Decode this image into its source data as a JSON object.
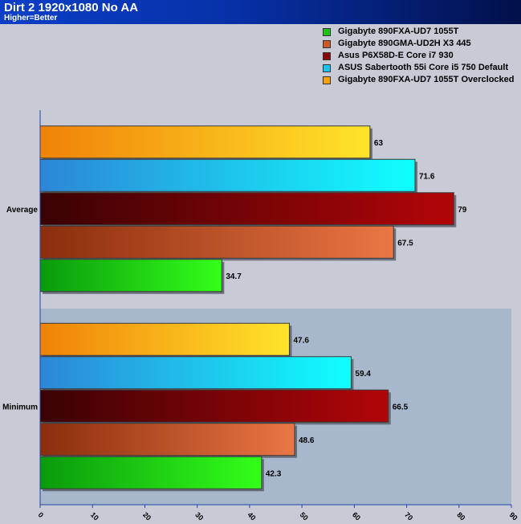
{
  "header": {
    "title": "Dirt 2 1920x1080 No AA",
    "subtitle": "Higher=Better"
  },
  "legend": [
    {
      "label": "Gigabyte 890FXA-UD7 1055T",
      "color": "#22c00e"
    },
    {
      "label": "Gigabyte 890GMA-UD2H X3 445",
      "color": "#c85a26"
    },
    {
      "label": "Asus P6X58D-E Core i7 930",
      "color": "#8a0508"
    },
    {
      "label": "ASUS Sabertooth 55i Core i5 750 Default",
      "color": "#18c4ee"
    },
    {
      "label": "Gigabyte 890FXA-UD7 1055T Overclocked",
      "color": "#f5a20c"
    }
  ],
  "chart_data": {
    "type": "bar",
    "orientation": "horizontal",
    "categories": [
      "Average",
      "Minimum"
    ],
    "series": [
      {
        "name": "Gigabyte 890FXA-UD7 1055T",
        "values": [
          34.7,
          42.3
        ],
        "color": "#22c00e"
      },
      {
        "name": "Gigabyte 890GMA-UD2H X3 445",
        "values": [
          67.5,
          48.6
        ],
        "color": "#c85a26"
      },
      {
        "name": "Asus P6X58D-E Core i7 930",
        "values": [
          79,
          66.5
        ],
        "color": "#8a0508"
      },
      {
        "name": "ASUS Sabertooth 55i Core i5 750 Default",
        "values": [
          71.6,
          59.4
        ],
        "color": "#18c4ee"
      },
      {
        "name": "Gigabyte 890FXA-UD7 1055T Overclocked",
        "values": [
          63,
          47.6
        ],
        "color": "#f5a20c"
      }
    ],
    "data_labels": [
      [
        "34.7",
        "67.5",
        "79",
        "71.6",
        "63"
      ],
      [
        "42.3",
        "48.6",
        "66.5",
        "59.4",
        "47.6"
      ]
    ],
    "xlim": [
      0,
      90
    ],
    "xticks": [
      0,
      10,
      20,
      30,
      40,
      50,
      60,
      70,
      80,
      90
    ],
    "grid": false,
    "legend_position": "top-right"
  }
}
